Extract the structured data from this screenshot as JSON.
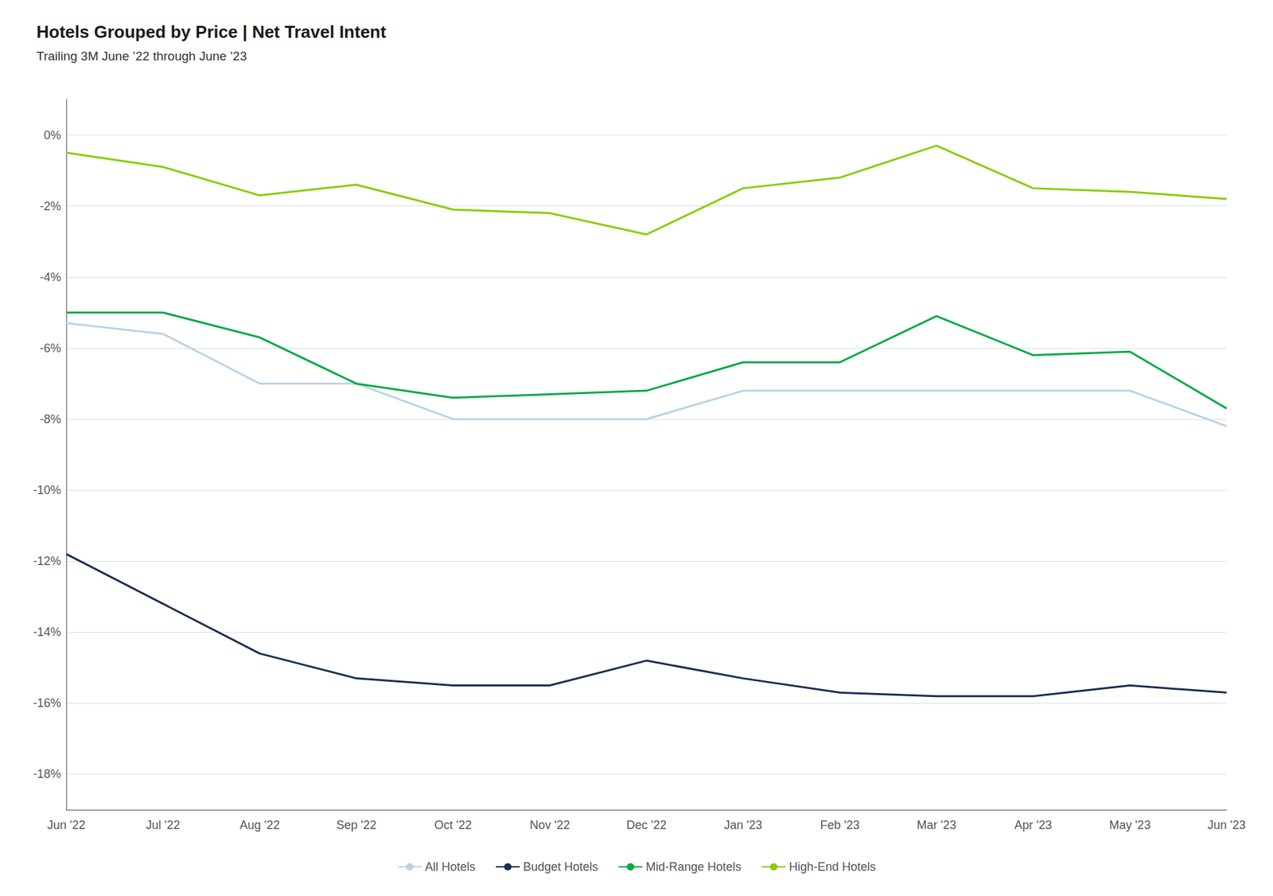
{
  "chart_data": {
    "type": "line",
    "title": "Hotels Grouped by Price | Net Travel Intent",
    "subtitle": "Trailing 3M June ’22 through June ’23",
    "categories": [
      "Jun '22",
      "Jul '22",
      "Aug '22",
      "Sep '22",
      "Oct '22",
      "Nov '22",
      "Dec '22",
      "Jan '23",
      "Feb '23",
      "Mar '23",
      "Apr '23",
      "May '23",
      "Jun '23"
    ],
    "series": [
      {
        "name": "All Hotels",
        "color": "#b8d4e8",
        "values": [
          -5.3,
          -5.6,
          -7.0,
          -7.0,
          -8.0,
          -8.0,
          -8.0,
          -7.2,
          -7.2,
          -7.2,
          -7.2,
          -7.2,
          -8.2
        ]
      },
      {
        "name": "Budget Hotels",
        "color": "#1a2e50",
        "values": [
          -11.8,
          -13.2,
          -14.6,
          -15.3,
          -15.5,
          -15.5,
          -14.8,
          -15.3,
          -15.7,
          -15.8,
          -15.8,
          -15.5,
          -15.7
        ]
      },
      {
        "name": "Mid-Range Hotels",
        "color": "#00aa44",
        "values": [
          -5.0,
          -5.0,
          -5.7,
          -7.0,
          -7.4,
          -7.3,
          -7.2,
          -6.4,
          -6.4,
          -5.1,
          -6.2,
          -6.1,
          -7.7
        ]
      },
      {
        "name": "High-End Hotels",
        "color": "#88cc00",
        "values": [
          -0.5,
          -0.9,
          -1.7,
          -1.4,
          -2.1,
          -2.2,
          -2.8,
          -1.5,
          -1.2,
          -0.3,
          -1.5,
          -1.6,
          -1.8
        ]
      }
    ],
    "ylim": [
      -19,
      1
    ],
    "yticks": [
      {
        "value": 0,
        "label": "0%"
      },
      {
        "value": -2,
        "label": "-2%"
      },
      {
        "value": -4,
        "label": "-4%"
      },
      {
        "value": -6,
        "label": "-6%"
      },
      {
        "value": -8,
        "label": "-8%"
      },
      {
        "value": -10,
        "label": "-10%"
      },
      {
        "value": -12,
        "label": "-12%"
      },
      {
        "value": -14,
        "label": "-14%"
      },
      {
        "value": -16,
        "label": "-16%"
      },
      {
        "value": -18,
        "label": "-18%"
      }
    ],
    "grid": true,
    "legend": "bottom"
  }
}
